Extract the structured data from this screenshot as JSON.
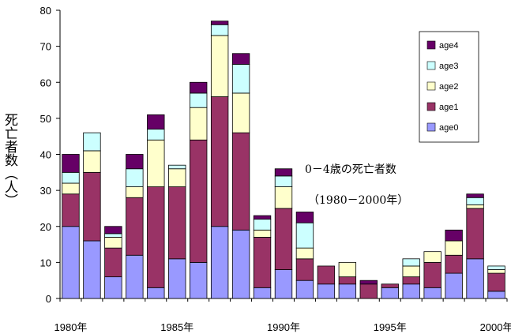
{
  "chart_data": {
    "type": "bar",
    "stacked": true,
    "title": "",
    "xlabel": "",
    "ylabel": "死亡者数（人）",
    "ylim": [
      0,
      80
    ],
    "yticks": [
      0,
      10,
      20,
      30,
      40,
      50,
      60,
      70,
      80
    ],
    "categories": [
      1980,
      1981,
      1982,
      1983,
      1984,
      1985,
      1986,
      1987,
      1988,
      1989,
      1990,
      1991,
      1992,
      1993,
      1994,
      1995,
      1996,
      1997,
      1998,
      1999,
      2000
    ],
    "x_tick_labels": [
      {
        "index": 0,
        "label": "1980年"
      },
      {
        "index": 5,
        "label": "1985年"
      },
      {
        "index": 10,
        "label": "1990年"
      },
      {
        "index": 15,
        "label": "1995年"
      },
      {
        "index": 20,
        "label": "2000年"
      }
    ],
    "series": [
      {
        "name": "age0",
        "color": "#9999ff",
        "values": [
          20,
          16,
          6,
          12,
          3,
          11,
          10,
          20,
          19,
          3,
          8,
          5,
          4,
          4,
          0,
          3,
          4,
          3,
          7,
          11,
          2
        ]
      },
      {
        "name": "age1",
        "color": "#993366",
        "values": [
          9,
          19,
          8,
          16,
          28,
          20,
          34,
          36,
          27,
          14,
          17,
          6,
          5,
          2,
          4,
          1,
          2,
          7,
          5,
          14,
          5
        ]
      },
      {
        "name": "age2",
        "color": "#ffffcc",
        "values": [
          3,
          6,
          3,
          3,
          13,
          5,
          9,
          17,
          11,
          2,
          6,
          3,
          0,
          4,
          0,
          0,
          3,
          3,
          4,
          1,
          1
        ]
      },
      {
        "name": "age3",
        "color": "#ccffff",
        "values": [
          3,
          5,
          1,
          5,
          3,
          1,
          4,
          3,
          8,
          3,
          3,
          7,
          0,
          0,
          0,
          0,
          2,
          0,
          0,
          2,
          1
        ]
      },
      {
        "name": "age4",
        "color": "#660066",
        "values": [
          5,
          0,
          2,
          4,
          4,
          0,
          3,
          1,
          3,
          1,
          2,
          3,
          0,
          0,
          1,
          0,
          0,
          0,
          3,
          1,
          0
        ]
      }
    ],
    "legend_order": [
      "age4",
      "age3",
      "age2",
      "age1",
      "age0"
    ],
    "legend_position": "top-right",
    "annotations": [
      "0－4歳の死亡者数",
      "（1980－2000年）"
    ],
    "grid": false
  }
}
